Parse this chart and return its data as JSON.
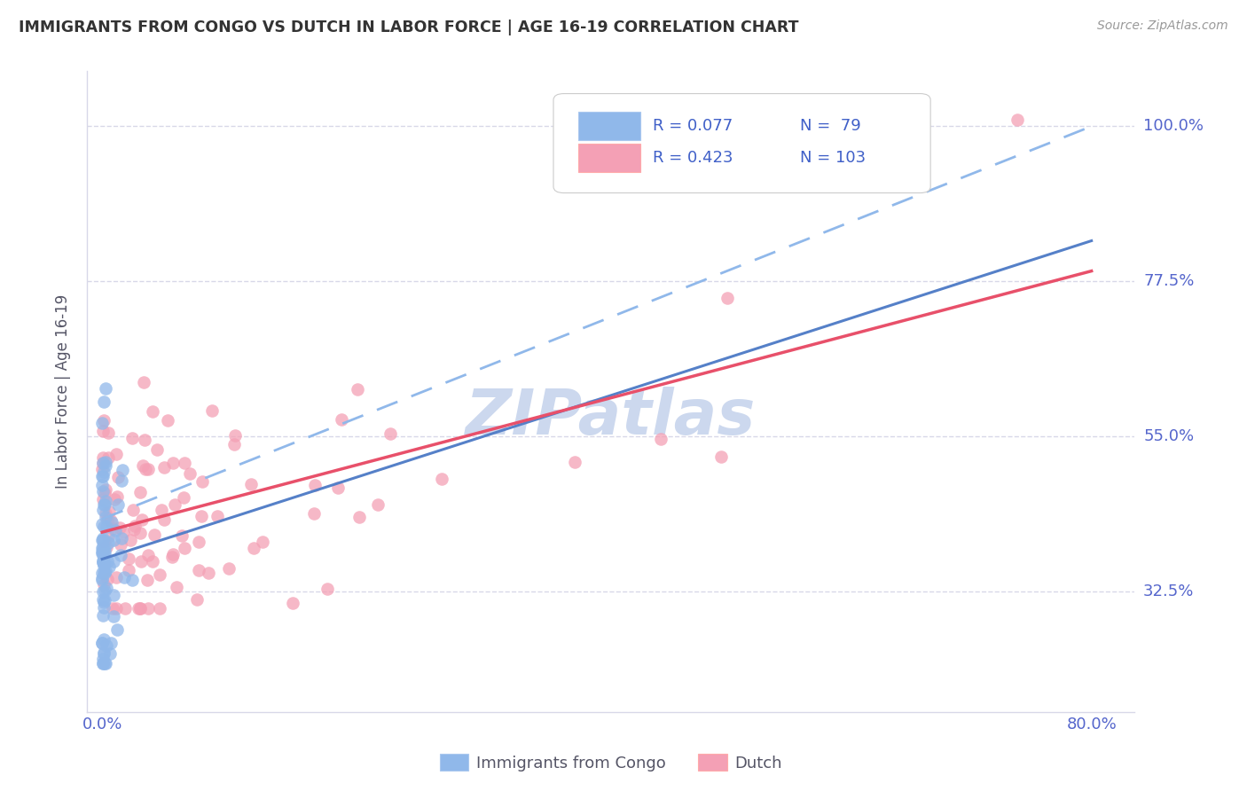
{
  "title": "IMMIGRANTS FROM CONGO VS DUTCH IN LABOR FORCE | AGE 16-19 CORRELATION CHART",
  "source": "Source: ZipAtlas.com",
  "ylabel": "In Labor Force | Age 16-19",
  "y_tick_labels": [
    "32.5%",
    "55.0%",
    "77.5%",
    "100.0%"
  ],
  "y_tick_positions": [
    0.325,
    0.55,
    0.775,
    1.0
  ],
  "xlim": [
    -0.012,
    0.835
  ],
  "ylim": [
    0.15,
    1.08
  ],
  "congo_color": "#90b8ea",
  "dutch_color": "#f4a0b5",
  "congo_trend_color": "#5580c8",
  "dutch_trend_color": "#e8506a",
  "congo_dashed_color": "#90b8ea",
  "congo_R": 0.077,
  "congo_N": 79,
  "dutch_R": 0.423,
  "dutch_N": 103,
  "legend_text_color": "#4060c8",
  "background_color": "#ffffff",
  "grid_color": "#d8d8e8",
  "title_color": "#333333",
  "axis_label_color": "#555566",
  "tick_color": "#5566cc",
  "watermark_color": "#ccd8ee"
}
